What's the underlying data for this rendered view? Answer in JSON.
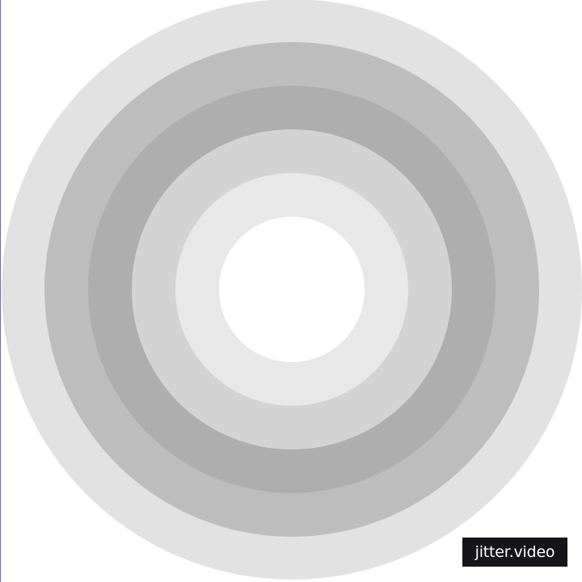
{
  "colors": {
    "background": "#ffffff",
    "left_edge": "#7b5cd6",
    "watermark_bg": "#16151a",
    "watermark_text": "#ffffff"
  },
  "rings": [
    {
      "name": "ring-1",
      "color": "#e2e2e2"
    },
    {
      "name": "ring-2",
      "color": "#bdbdbd"
    },
    {
      "name": "ring-3",
      "color": "#aeaeae"
    },
    {
      "name": "ring-4",
      "color": "#d3d3d3"
    },
    {
      "name": "ring-5",
      "color": "#e8e8e8"
    },
    {
      "name": "ring-center",
      "color": "#ffffff"
    }
  ],
  "watermark": {
    "text": "jitter.video"
  }
}
